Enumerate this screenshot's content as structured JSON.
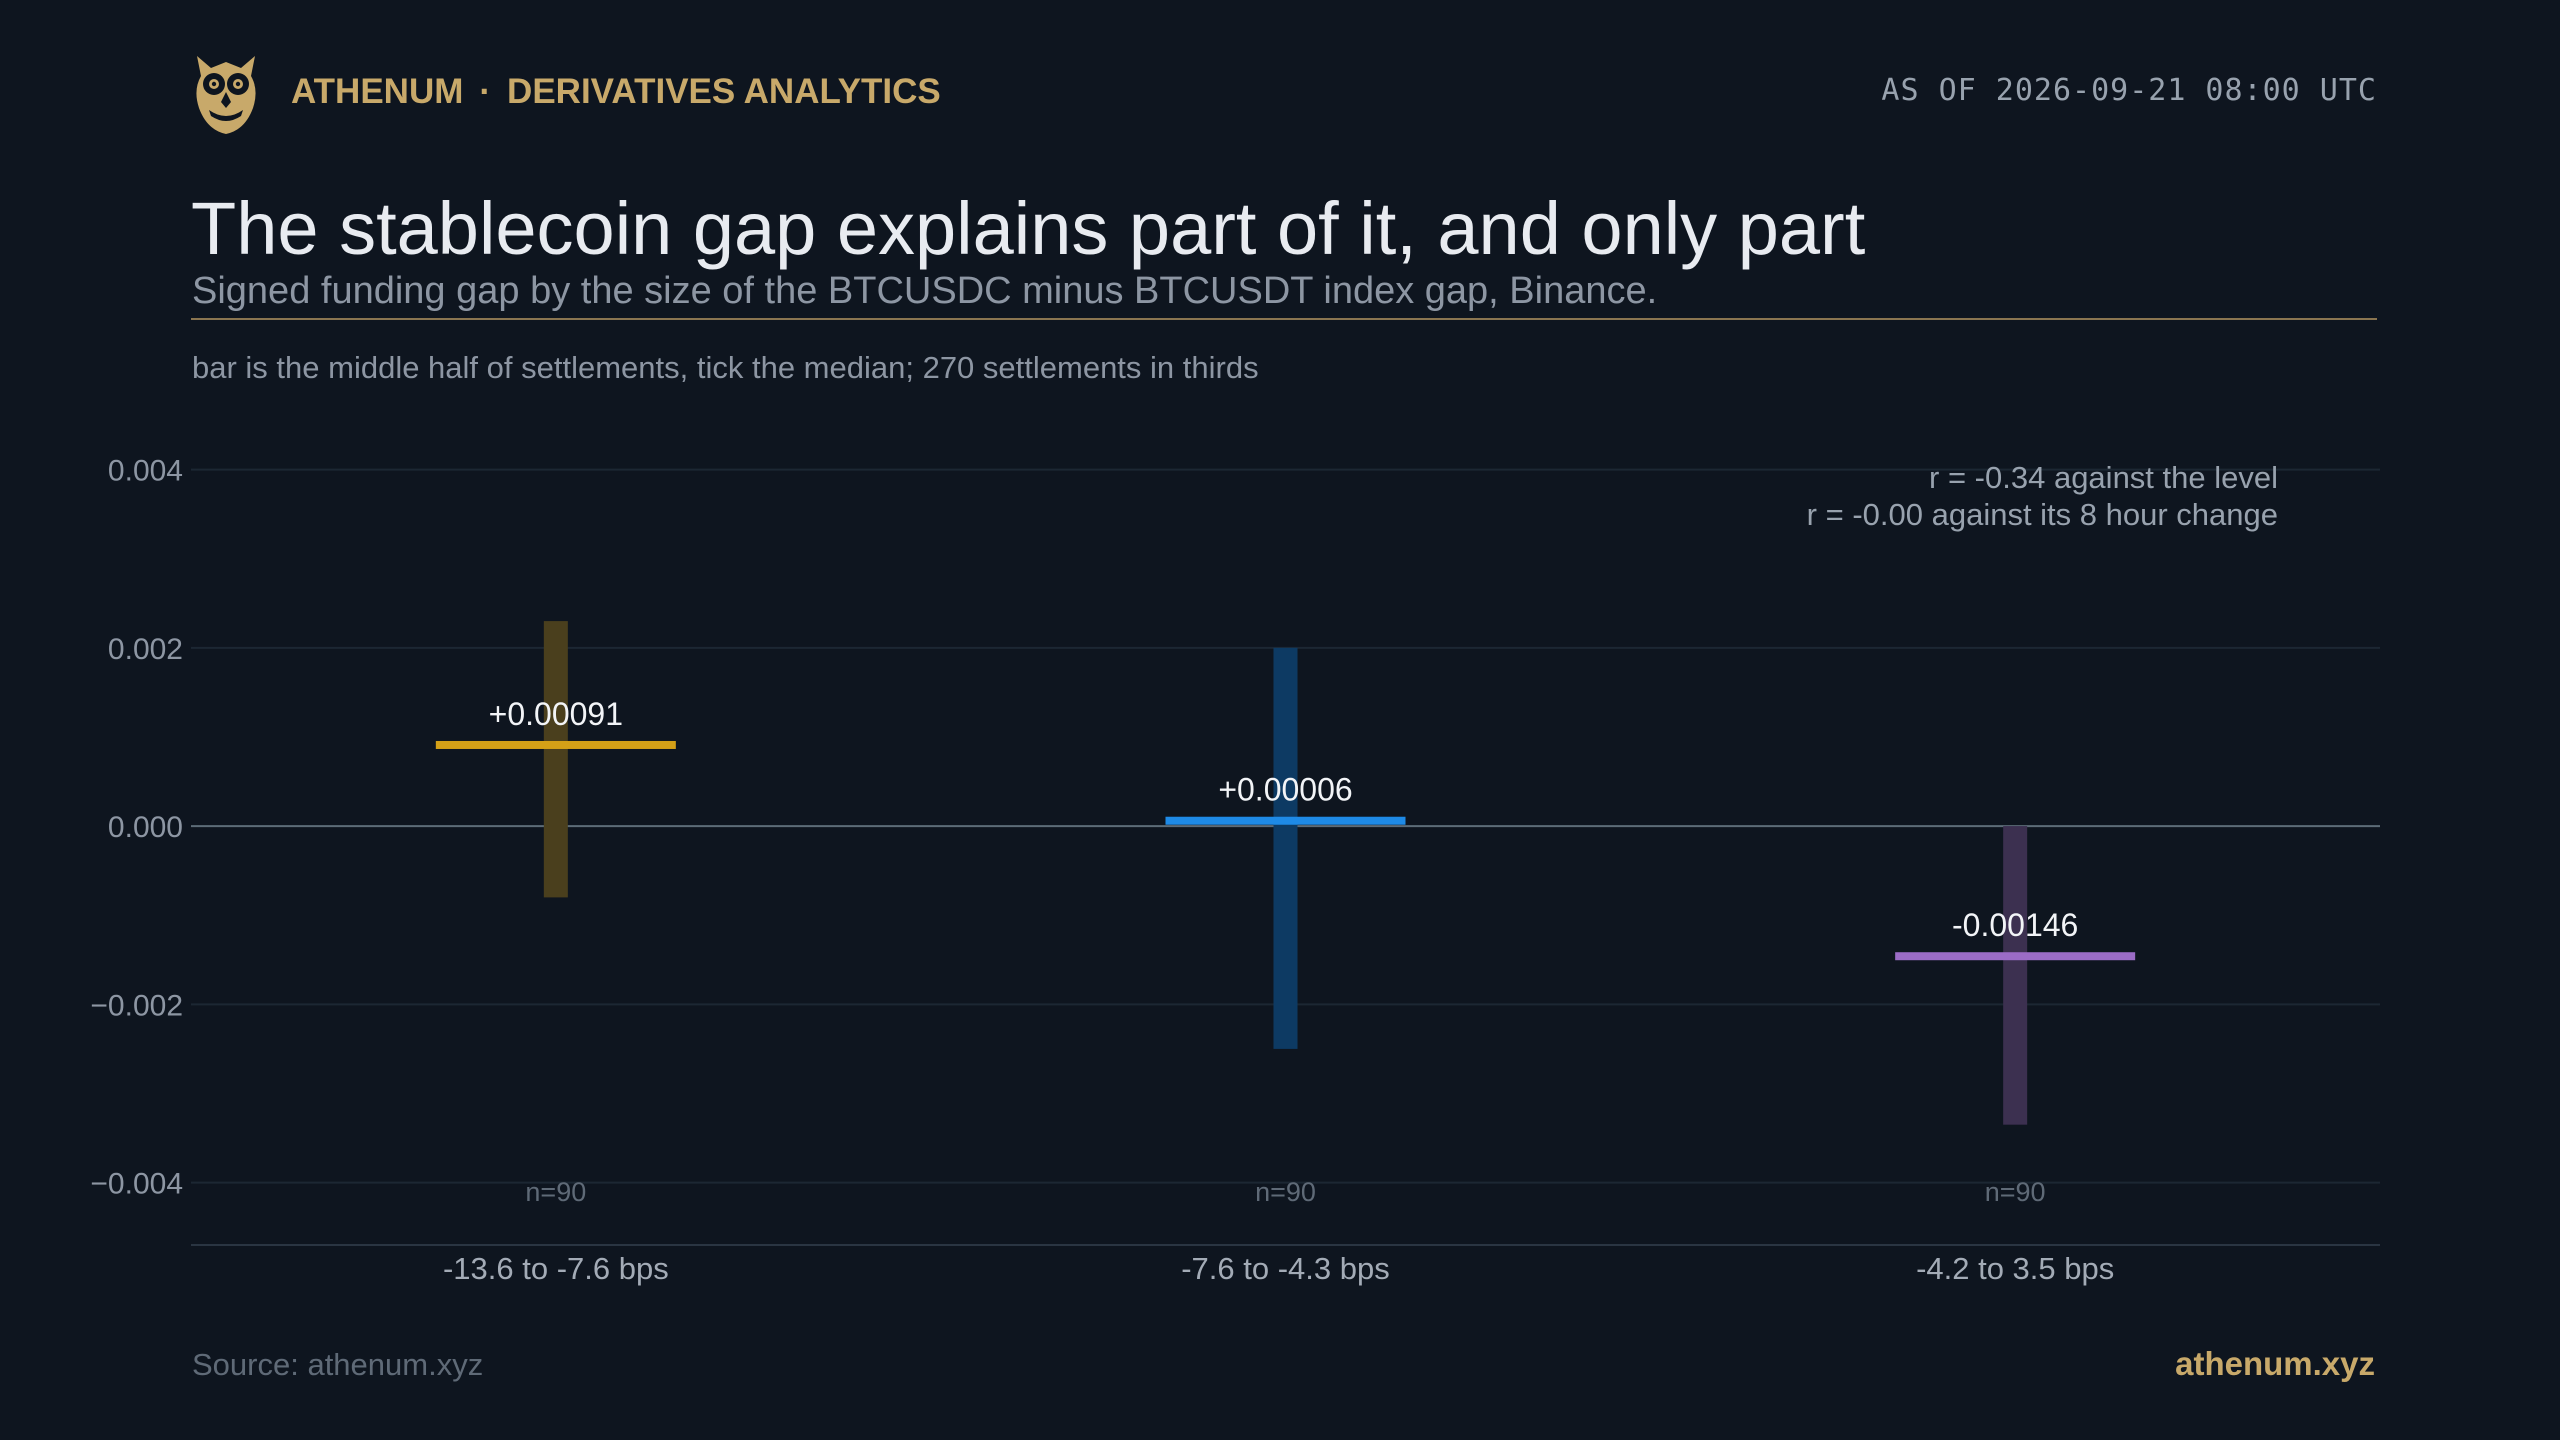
{
  "header": {
    "brand_name": "ATHENUM",
    "brand_separator": "·",
    "brand_section": "DERIVATIVES ANALYTICS",
    "as_of": "AS OF 2026-09-21 08:00 UTC",
    "logo_icon": "owl-icon",
    "brand_color": "#c8a96a"
  },
  "title": "The stablecoin gap explains part of it, and only part",
  "subtitle": "Signed funding gap by the size of the BTCUSDC minus BTCUSDT index gap, Binance.",
  "note": "bar is the middle half of settlements, tick the median; 270 settlements in thirds",
  "footer": {
    "source": "Source: athenum.xyz",
    "site": "athenum.xyz"
  },
  "chart_data": {
    "type": "bar",
    "title": "The stablecoin gap explains part of it, and only part",
    "subtitle": "Signed funding gap by the size of the BTCUSDC minus BTCUSDT index gap, Binance.",
    "xlabel": "",
    "ylabel": "",
    "ylim": [
      -0.0047,
      0.0045
    ],
    "yticks": [
      0.004,
      0.002,
      0.0,
      -0.002,
      -0.004
    ],
    "ytick_labels": [
      "0.004",
      "0.002",
      "0.000",
      "−0.002",
      "−0.004"
    ],
    "grid": true,
    "categories": [
      "-13.6 to -7.6 bps",
      "-7.6 to -4.3 bps",
      "-4.2 to 3.5 bps"
    ],
    "iqr_low": [
      -0.0008,
      -0.0025,
      -0.00335
    ],
    "iqr_high": [
      0.0023,
      0.002,
      0.0
    ],
    "medians": [
      0.00091,
      6e-05,
      -0.00146
    ],
    "median_labels": [
      "+0.00091",
      "+0.00006",
      "-0.00146"
    ],
    "counts": [
      "n=90",
      "n=90",
      "n=90"
    ],
    "colors": [
      "#d4a017",
      "#1e8ae6",
      "#9b6cc6"
    ],
    "bar_colors": [
      "#4a3f1d",
      "#0d3a63",
      "#3c3050"
    ],
    "annotations": [
      "r = -0.34 against the level",
      "r = -0.00 against its 8 hour change"
    ]
  }
}
